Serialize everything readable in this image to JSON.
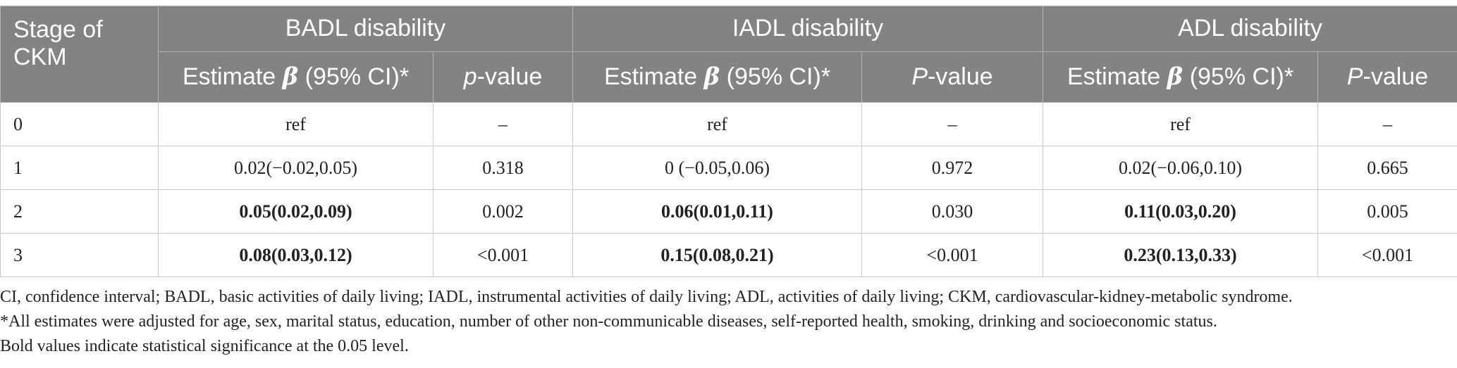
{
  "table": {
    "header": {
      "stage": "Stage of CKM",
      "groups": [
        "BADL disability",
        "IADL disability",
        "ADL disability"
      ],
      "estimate_prefix": "Estimate ",
      "estimate_beta": "β",
      "estimate_suffix": " (95% CI)*",
      "pvalue_labels": [
        {
          "italic": "p",
          "rest": "-value"
        },
        {
          "italic": "P",
          "rest": "-value"
        },
        {
          "italic": "P",
          "rest": "-value"
        }
      ]
    },
    "rows": [
      {
        "stage": "0",
        "badl_est": "ref",
        "badl_p": "–",
        "iadl_est": "ref",
        "iadl_p": "–",
        "adl_est": "ref",
        "adl_p": "–"
      },
      {
        "stage": "1",
        "badl_est": "0.02(−0.02,0.05)",
        "badl_p": "0.318",
        "iadl_est": "0 (−0.05,0.06)",
        "iadl_p": "0.972",
        "adl_est": "0.02(−0.06,0.10)",
        "adl_p": "0.665"
      },
      {
        "stage": "2",
        "badl_est": "0.05(0.02,0.09)",
        "badl_p": "0.002",
        "iadl_est": "0.06(0.01,0.11)",
        "iadl_p": "0.030",
        "adl_est": "0.11(0.03,0.20)",
        "adl_p": "0.005"
      },
      {
        "stage": "3",
        "badl_est": "0.08(0.03,0.12)",
        "badl_p": "<0.001",
        "iadl_est": "0.15(0.08,0.21)",
        "iadl_p": "<0.001",
        "adl_est": "0.23(0.13,0.33)",
        "adl_p": "<0.001"
      }
    ]
  },
  "footnotes": {
    "abbreviations": "CI, confidence interval; BADL, basic activities of daily living; IADL, instrumental activities of daily living; ADL, activities of daily living; CKM, cardiovascular-kidney-metabolic syndrome.",
    "adjustment": "*All estimates were adjusted for age, sex, marital status, education, number of other non-communicable diseases, self-reported health, smoking, drinking and socioeconomic status.",
    "significance": "Bold values indicate statistical significance at the 0.05 level."
  },
  "colors": {
    "header_bg": "#838381",
    "header_text": "#ffffff",
    "grid": "#c9c9c7",
    "body_text": "#222222"
  }
}
